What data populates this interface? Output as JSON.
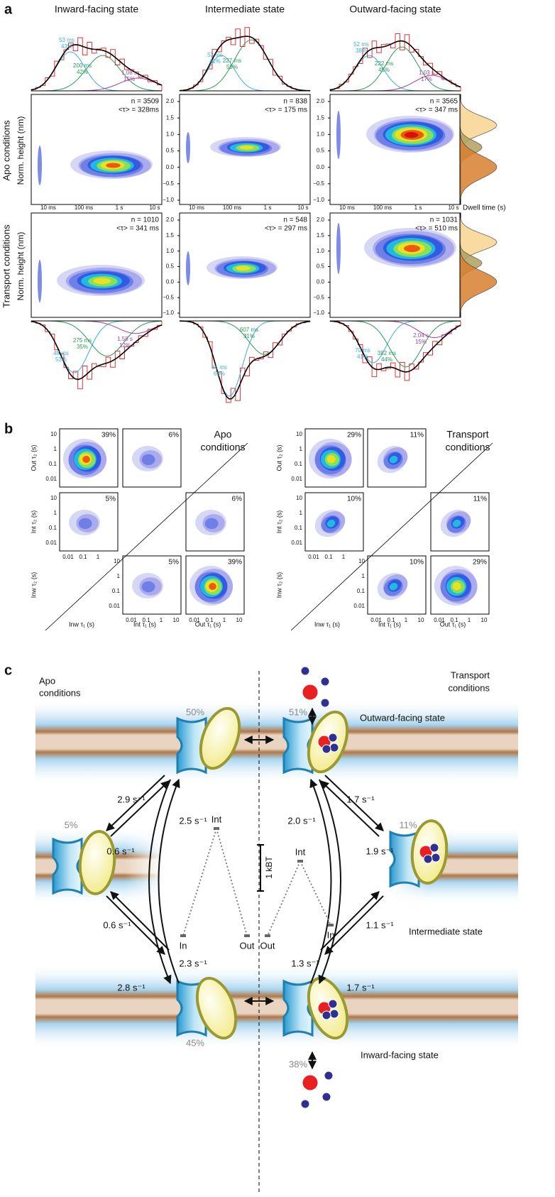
{
  "panel_a": {
    "label": "a",
    "columns": [
      "Inward-facing state",
      "Intermediate state",
      "Outward-facing state"
    ],
    "row_labels": [
      "Apo conditions",
      "Transport conditions"
    ],
    "y_axis_label": "Norm. height (nm)",
    "yticks": [
      "2.0",
      "1.5",
      "1.0",
      "0.5",
      "0.0",
      "−0.5",
      "−1.0"
    ],
    "xticks": [
      "10 ms",
      "100 ms",
      "1 s",
      "10 s"
    ],
    "dwell_axis_label": "Dwell time (s)",
    "apo": [
      {
        "n": "n = 3509",
        "tau": "<τ> = 328ms",
        "fits": [
          {
            "time": "53 ms",
            "share": "43%"
          },
          {
            "time": "200 ms",
            "share": "42%"
          },
          {
            "time": "1.08 s",
            "share": "15%"
          }
        ]
      },
      {
        "n": "n = 838",
        "tau": "<τ> = 175 ms",
        "fits": [
          {
            "time": "53 ms",
            "share": "41%"
          },
          {
            "time": "227 ms",
            "share": "59%"
          }
        ]
      },
      {
        "n": "n = 3565",
        "tau": "<τ> = 347 ms",
        "fits": [
          {
            "time": "52 ms",
            "share": "38%"
          },
          {
            "time": "222 ms",
            "share": "45%"
          },
          {
            "time": "1.03 s",
            "share": "17%"
          }
        ]
      }
    ],
    "transport": [
      {
        "n": "n = 1010",
        "tau": "<τ> = 341 ms",
        "fits": [
          {
            "time": "48 ms",
            "share": "53%"
          },
          {
            "time": "275 ms",
            "share": "35%"
          },
          {
            "time": "1.58 s",
            "share": "12%"
          }
        ]
      },
      {
        "n": "n = 548",
        "tau": "<τ> = 297 ms",
        "fits": [
          {
            "time": "81 ms",
            "share": "69%"
          },
          {
            "time": "607 ms",
            "share": "31%"
          }
        ]
      },
      {
        "n": "n = 1031",
        "tau": "<τ> = 510 ms",
        "fits": [
          {
            "time": "70 ms",
            "share": "41%"
          },
          {
            "time": "382 ms",
            "share": "44%"
          },
          {
            "time": "2.04 s",
            "share": "15%"
          }
        ]
      }
    ]
  },
  "panel_b": {
    "label": "b",
    "groups": [
      {
        "title": [
          "Apo",
          "conditions"
        ],
        "percentages": [
          "39%",
          "6%",
          "5%",
          "6%",
          "5%",
          "39%"
        ]
      },
      {
        "title": [
          "Transport",
          "conditions"
        ],
        "percentages": [
          "29%",
          "11%",
          "10%",
          "11%",
          "10%",
          "29%"
        ]
      }
    ],
    "y_labels": [
      "Out τ₂ (s)",
      "Int τ₂ (s)",
      "Inw τ₂ (s)"
    ],
    "x_labels": [
      "Inw τ₁ (s)",
      "Int τ₁ (s)",
      "Out τ₁ (s)"
    ],
    "yticks": [
      "10",
      "1",
      "0.1",
      "0.01"
    ],
    "xticks": [
      "0.01",
      "0.1",
      "1",
      "10"
    ]
  },
  "panel_c": {
    "label": "c",
    "apo_title": [
      "Apo",
      "conditions"
    ],
    "transport_title": [
      "Transport",
      "conditions"
    ],
    "states": [
      "Outward-facing state",
      "Intermediate state",
      "Inward-facing state"
    ],
    "percentages": [
      "50%",
      "51%",
      "5%",
      "11%",
      "45%",
      "38%"
    ],
    "rates": [
      "2.9 s⁻¹",
      "2.5 s⁻¹",
      "1.7 s⁻¹",
      "2.0 s⁻¹",
      "0.6 s⁻¹",
      "0.6 s⁻¹",
      "1.9 s⁻¹",
      "1.1 s⁻¹",
      "2.8 s⁻¹",
      "2.3 s⁻¹",
      "1.3 s⁻¹",
      "1.7 s⁻¹"
    ],
    "energy_apo": [
      "Int",
      "In",
      "Out"
    ],
    "energy_transport": [
      "Int",
      "Out",
      "In"
    ],
    "scale_label": "1 kBT"
  }
}
